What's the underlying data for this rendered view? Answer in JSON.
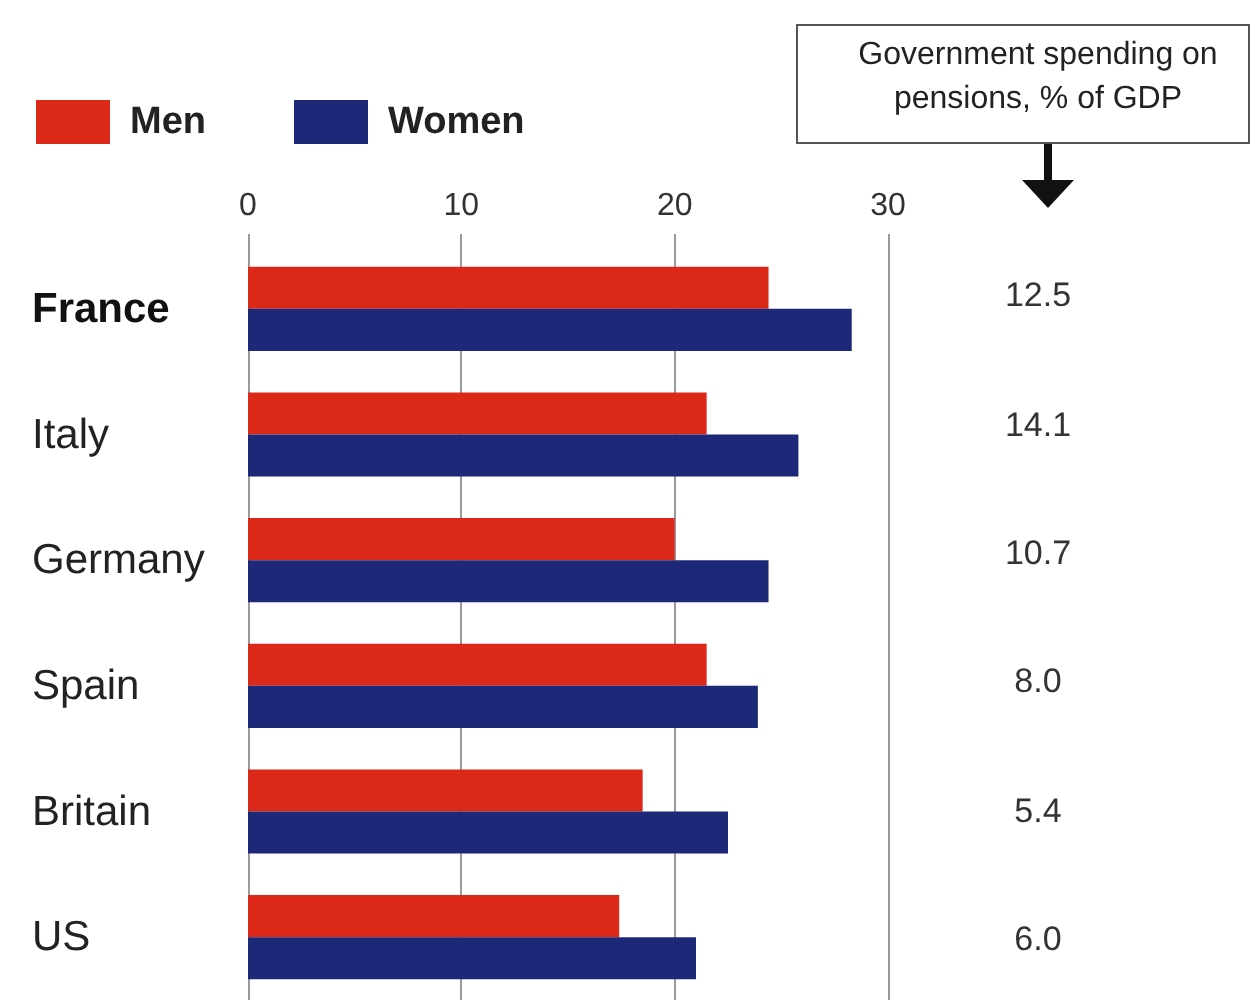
{
  "chart_data": [
    {
      "type": "bar",
      "orientation": "horizontal",
      "categories": [
        "France",
        "Italy",
        "Germany",
        "Spain",
        "Britain",
        "US"
      ],
      "series": [
        {
          "name": "Men",
          "color": "#dc2819",
          "values": [
            24.4,
            21.5,
            20.0,
            21.5,
            18.5,
            17.4
          ]
        },
        {
          "name": "Women",
          "color": "#1e2878",
          "values": [
            28.3,
            25.8,
            24.4,
            23.9,
            22.5,
            21.0
          ]
        }
      ],
      "xlim": [
        0,
        30
      ],
      "xticks": [
        0,
        10,
        20,
        30
      ],
      "grid": "x",
      "legend": "top left"
    },
    {
      "type": "other",
      "title": "Government spending on pensions, % of GDP",
      "annotations": [
        "12.5",
        "14.1",
        "10.7",
        "8.0",
        "5.4",
        "6.0"
      ]
    }
  ]
}
